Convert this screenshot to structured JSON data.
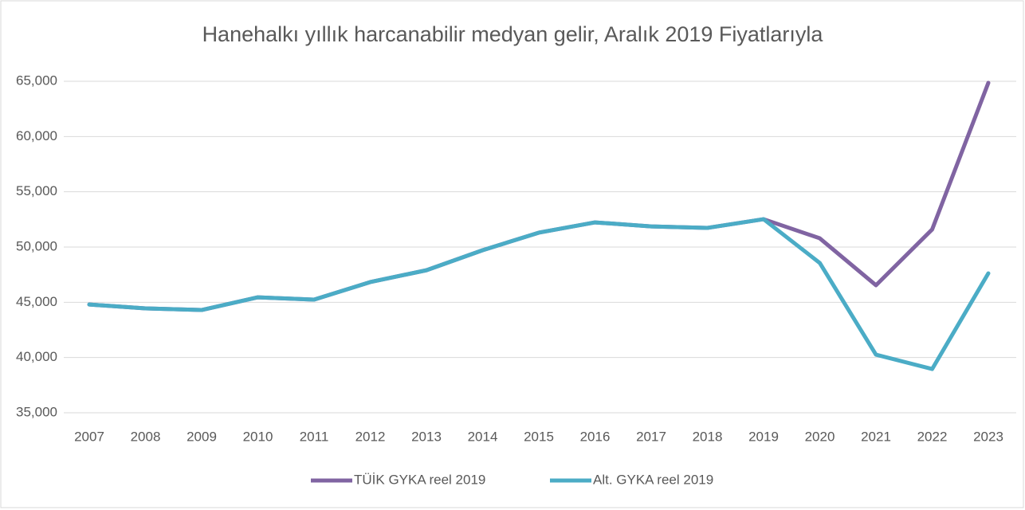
{
  "chart_data": {
    "type": "line",
    "title": "Hanehalkı yıllık harcanabilir medyan gelir, Aralık 2019 Fiyatlarıyla",
    "categories": [
      "2007",
      "2008",
      "2009",
      "2010",
      "2011",
      "2012",
      "2013",
      "2014",
      "2015",
      "2016",
      "2017",
      "2018",
      "2019",
      "2020",
      "2021",
      "2022",
      "2023"
    ],
    "series": [
      {
        "name": "TÜİK GYKA reel 2019",
        "color": "#8064a2",
        "values": [
          44800,
          44450,
          44300,
          45450,
          45240,
          46830,
          47900,
          49710,
          51300,
          52230,
          51870,
          51730,
          52520,
          50790,
          46540,
          51590,
          64860
        ]
      },
      {
        "name": "Alt. GYKA reel 2019",
        "color": "#4bacc6",
        "values": [
          44800,
          44450,
          44300,
          45450,
          45240,
          46830,
          47900,
          49710,
          51300,
          52230,
          51870,
          51730,
          52520,
          48560,
          40260,
          38960,
          47620
        ]
      }
    ],
    "ylim": [
      35000,
      65000
    ],
    "yticks": [
      {
        "value": 35000,
        "label": "35,000"
      },
      {
        "value": 40000,
        "label": "40,000"
      },
      {
        "value": 45000,
        "label": "45,000"
      },
      {
        "value": 50000,
        "label": "50,000"
      },
      {
        "value": 55000,
        "label": "55,000"
      },
      {
        "value": 60000,
        "label": "60,000"
      },
      {
        "value": 65000,
        "label": "65,000"
      }
    ],
    "grid": true,
    "legend": "bottom"
  }
}
